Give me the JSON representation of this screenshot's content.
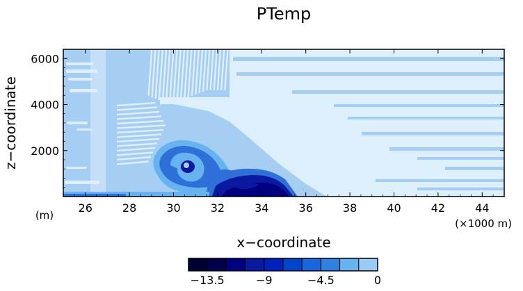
{
  "chart_data": {
    "type": "heatmap",
    "title": "PTemp",
    "xlabel": "x−coordinate",
    "ylabel": "z−coordinate",
    "x_unit": "(×1000 m)",
    "y_unit": "(m)",
    "xlim": [
      25,
      45
    ],
    "ylim": [
      0,
      6400
    ],
    "x_ticks": [
      "26",
      "28",
      "30",
      "32",
      "34",
      "36",
      "38",
      "40",
      "42",
      "44"
    ],
    "y_ticks": [
      "2000",
      "4000",
      "6000"
    ],
    "colorbar": {
      "levels": [
        -15,
        -13.5,
        -12,
        -10.5,
        -9,
        -7.5,
        -6,
        -4.5,
        -3,
        -1.5,
        0
      ],
      "colors": [
        "#000033",
        "#00004d",
        "#000080",
        "#0a1aa0",
        "#0022bb",
        "#0044cc",
        "#1a66dd",
        "#2f80e0",
        "#66b3f0",
        "#99ccf5"
      ],
      "tick_labels": [
        "−13.5",
        "−9",
        "−4.5",
        "0"
      ],
      "tick_values": [
        -13.5,
        -9,
        -4.5,
        0
      ]
    },
    "field_colors": {
      "background": "#a6cdf2",
      "light_band": "#dceffb",
      "mid": "#66b3f0",
      "dark": "#2f6fd8",
      "darker": "#0a1aa0",
      "darkest": "#000080"
    }
  }
}
